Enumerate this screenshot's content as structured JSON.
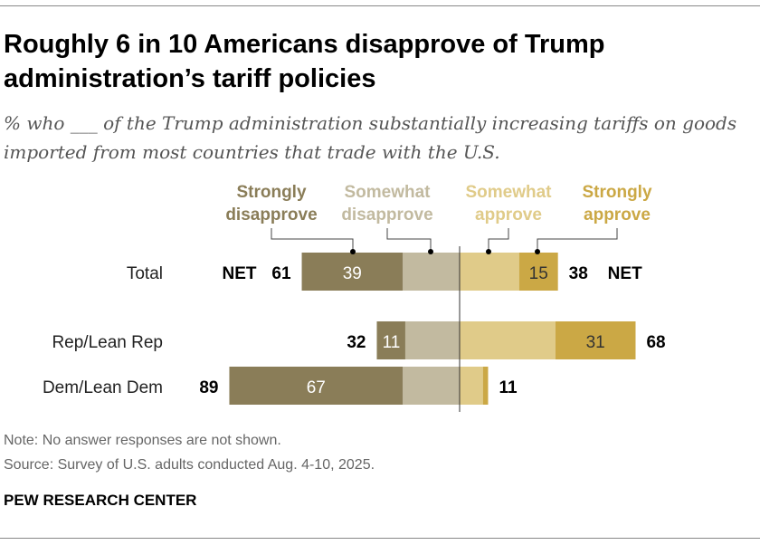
{
  "title": "Roughly 6 in 10 Americans disapprove of Trump administration’s tariff policies",
  "subtitle": "% who ___ of the Trump administration substantially increasing tariffs on goods imported from most countries that trade with the U.S.",
  "note": "Note: No answer responses are not shown.",
  "source": "Source: Survey of U.S. adults conducted Aug. 4-10, 2025.",
  "brand": "PEW RESEARCH CENTER",
  "chart_data": {
    "type": "bar",
    "orientation": "diverging-stacked-horizontal",
    "categories": [
      "Total",
      "Rep/Lean Rep",
      "Dem/Lean Dem"
    ],
    "series": [
      {
        "name": "Strongly disapprove",
        "side": "left",
        "color": "#8a7d58",
        "values": [
          39,
          11,
          67
        ],
        "labels": [
          "39",
          "11",
          "67"
        ]
      },
      {
        "name": "Somewhat disapprove",
        "side": "left",
        "color": "#c2baa0",
        "values": [
          22,
          21,
          22
        ],
        "labels": [
          "",
          "",
          ""
        ]
      },
      {
        "name": "Somewhat approve",
        "side": "right",
        "color": "#e0cb89",
        "values": [
          23,
          37,
          9
        ],
        "labels": [
          "",
          "",
          ""
        ]
      },
      {
        "name": "Strongly approve",
        "side": "right",
        "color": "#cba845",
        "values": [
          15,
          31,
          2
        ],
        "labels": [
          "15",
          "31",
          ""
        ]
      }
    ],
    "net_disapprove": [
      "61",
      "32",
      "89"
    ],
    "net_approve": [
      "38",
      "68",
      "11"
    ],
    "net_label": "NET",
    "legend_labels": [
      [
        "Strongly",
        "disapprove"
      ],
      [
        "Somewhat",
        "disapprove"
      ],
      [
        "Somewhat",
        "approve"
      ],
      [
        "Strongly",
        "approve"
      ]
    ],
    "legend_colors": [
      "#8a7d58",
      "#c2baa0",
      "#e0cb89",
      "#cba845"
    ]
  }
}
